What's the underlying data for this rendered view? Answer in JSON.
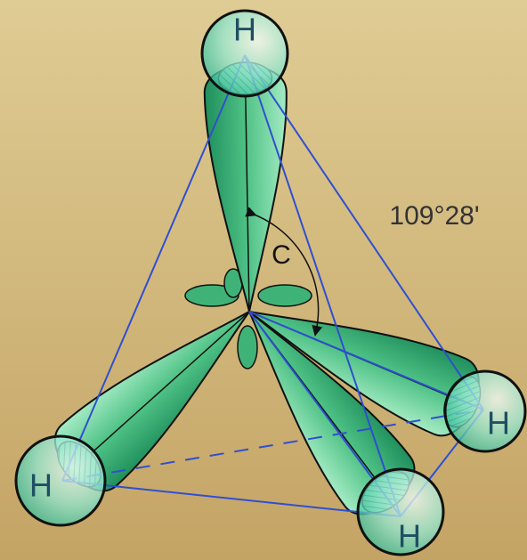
{
  "atoms": [
    {
      "label": "H"
    },
    {
      "label": "H"
    },
    {
      "label": "H"
    },
    {
      "label": "H"
    }
  ],
  "center": {
    "label": "C"
  },
  "angle": {
    "label": "109°28'"
  }
}
